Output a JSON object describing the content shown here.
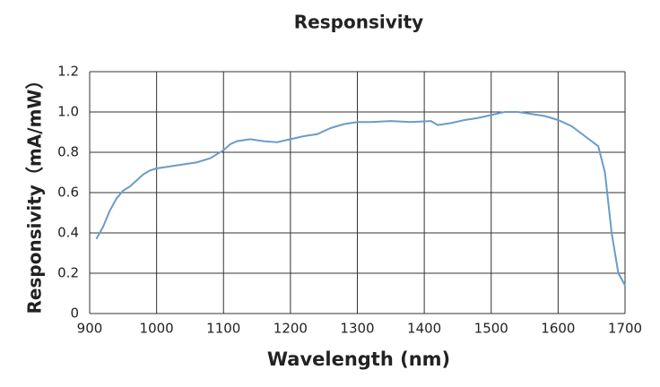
{
  "chart_data": {
    "type": "line",
    "title": "Responsivity",
    "x_label": "Wavelength (nm)",
    "y_label": "Responsivity（mA/mW）",
    "x": [
      910,
      920,
      930,
      940,
      950,
      960,
      970,
      980,
      990,
      1000,
      1020,
      1040,
      1060,
      1080,
      1100,
      1110,
      1120,
      1140,
      1160,
      1180,
      1200,
      1220,
      1240,
      1260,
      1280,
      1300,
      1320,
      1350,
      1380,
      1410,
      1420,
      1440,
      1460,
      1480,
      1500,
      1520,
      1540,
      1560,
      1580,
      1600,
      1620,
      1640,
      1660,
      1670,
      1680,
      1690,
      1700
    ],
    "series": [
      {
        "color": "#6b9bc9",
        "values": [
          0.37,
          0.43,
          0.51,
          0.57,
          0.61,
          0.63,
          0.66,
          0.69,
          0.71,
          0.72,
          0.73,
          0.74,
          0.75,
          0.77,
          0.81,
          0.84,
          0.855,
          0.865,
          0.855,
          0.85,
          0.865,
          0.88,
          0.89,
          0.92,
          0.94,
          0.95,
          0.95,
          0.955,
          0.95,
          0.955,
          0.935,
          0.945,
          0.96,
          0.97,
          0.985,
          1.0,
          1.0,
          0.99,
          0.98,
          0.96,
          0.93,
          0.88,
          0.83,
          0.7,
          0.4,
          0.2,
          0.14
        ]
      }
    ],
    "xlim": [
      900,
      1700
    ],
    "xticks": [
      900,
      1000,
      1100,
      1200,
      1300,
      1400,
      1500,
      1600,
      1700
    ],
    "ylim": [
      0,
      1.2
    ],
    "yticks": [
      0,
      0.2,
      0.4,
      0.6,
      0.8,
      {
        "value": 1,
        "label": "1.0"
      },
      1.2
    ],
    "grid": true
  }
}
